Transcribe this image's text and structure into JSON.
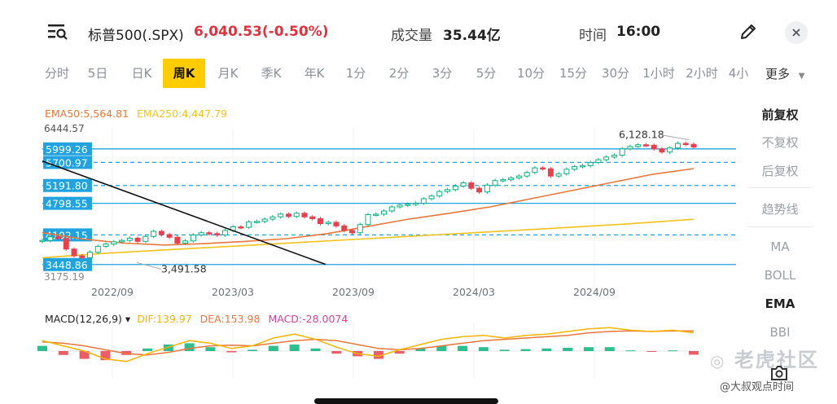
{
  "header": {
    "ticker": "标普500(.SPX)",
    "price_change": "6,040.53(-0.50%)",
    "volume_label": "成交量",
    "volume_value": "35.44亿",
    "time_label": "时间",
    "time_value": "16:00",
    "menu_icon": "search-list-icon",
    "edit_icon": "pencil-icon",
    "close_icon": "close-icon"
  },
  "timeframes": [
    "分时",
    "5日",
    "日K",
    "周K",
    "月K",
    "季K",
    "年K",
    "1分",
    "2分",
    "3分",
    "5分",
    "10分",
    "15分",
    "30分",
    "1小时",
    "2小时",
    "4小"
  ],
  "active_timeframe": "周K",
  "more_label": "更多",
  "side_panel": {
    "adjust": [
      "前复权",
      "不复权",
      "后复权"
    ],
    "active_adjust": "前复权",
    "tool": "趋势线",
    "indicators": [
      "MA",
      "BOLL",
      "EMA",
      "BBI"
    ],
    "active_indicator": "EMA"
  },
  "ema_legend": {
    "ema50": "EMA50:5,564.81",
    "ema250": "EMA250:4,447.79"
  },
  "macd_legend": {
    "name": "MACD(12,26,9)",
    "arrow": "▾",
    "dif": "DIF:139.97",
    "dea": "DEA:153.98",
    "macd": "MACD:-28.0074"
  },
  "watermark": "老虎社区",
  "credit": "@大叔观点时间",
  "colors": {
    "up": "#0ab37a",
    "down": "#e8414e",
    "ema50": "#e9763a",
    "ema250": "#f2c21b",
    "level": "#21a3e0",
    "dif": "#f5b400",
    "dea": "#e9763a",
    "macd": "#d6409f",
    "active_tab": "#ffcc00"
  },
  "chart_data": {
    "type": "candlestick",
    "ylim": [
      3175.19,
      6444.57
    ],
    "y_axis_top": "6444.57",
    "y_axis_bottom": "3175.19",
    "x_ticks": [
      "2022/09",
      "2023/03",
      "2023/09",
      "2024/03",
      "2024/09"
    ],
    "level_labels": [
      "5999.26",
      "5700.97",
      "5191.80",
      "4798.55",
      "4102.15",
      "3448.86"
    ],
    "levels": [
      {
        "value": 5999.26,
        "style": "solid"
      },
      {
        "value": 5700.97,
        "style": "dashed"
      },
      {
        "value": 5191.8,
        "style": "dashed"
      },
      {
        "value": 4798.55,
        "style": "solid"
      },
      {
        "value": 4102.15,
        "style": "dashed"
      },
      {
        "value": 3448.86,
        "style": "solid"
      }
    ],
    "annotations": [
      {
        "text": "6,128.18",
        "value": 6128.18
      },
      {
        "text": "3,491.58",
        "value": 3491.58
      }
    ],
    "trendline": [
      [
        4500,
        3500
      ],
      [
        4760,
        3990
      ]
    ],
    "close_series": [
      3980,
      4060,
      4020,
      3790,
      3640,
      3600,
      3720,
      3850,
      3900,
      3950,
      3980,
      4030,
      3960,
      4070,
      4180,
      4110,
      4050,
      3920,
      3970,
      4100,
      4150,
      4130,
      4100,
      4200,
      4280,
      4270,
      4390,
      4400,
      4450,
      4500,
      4560,
      4510,
      4580,
      4500,
      4460,
      4350,
      4380,
      4300,
      4200,
      4150,
      4330,
      4550,
      4560,
      4630,
      4720,
      4760,
      4780,
      4800,
      4900,
      4960,
      5060,
      5100,
      5180,
      5250,
      5130,
      5050,
      5200,
      5300,
      5320,
      5360,
      5400,
      5480,
      5580,
      5560,
      5400,
      5450,
      5550,
      5610,
      5630,
      5700,
      5760,
      5820,
      5860,
      6000,
      6050,
      6090,
      6080,
      6000,
      5930,
      6020,
      6120,
      6100,
      6040
    ],
    "ema50_series": [
      4150,
      4010,
      3920,
      3880,
      3910,
      3960,
      4020,
      4130,
      4290,
      4450,
      4580,
      4720,
      4900,
      5080,
      5260,
      5440,
      5564.81
    ],
    "ema250_series": [
      3600,
      3700,
      3780,
      3860,
      3940,
      4020,
      4100,
      4180,
      4260,
      4347,
      4447.79
    ],
    "macd": {
      "dif": [
        80,
        40,
        0,
        -60,
        -80,
        -20,
        30,
        80,
        60,
        20,
        40,
        100,
        130,
        90,
        30,
        -20,
        -40,
        10,
        50,
        90,
        110,
        120,
        100,
        120,
        130,
        150,
        170,
        180,
        160,
        150,
        160,
        139.97
      ],
      "dea": [
        70,
        60,
        40,
        10,
        -20,
        -30,
        -10,
        20,
        40,
        45,
        40,
        60,
        80,
        90,
        80,
        50,
        20,
        10,
        20,
        40,
        60,
        80,
        90,
        100,
        110,
        120,
        140,
        150,
        155,
        150,
        155,
        153.98
      ],
      "hist": [
        40,
        -30,
        -60,
        -70,
        -30,
        20,
        50,
        60,
        30,
        -10,
        10,
        40,
        50,
        20,
        -20,
        -40,
        -60,
        -20,
        20,
        40,
        40,
        30,
        10,
        15,
        20,
        25,
        30,
        30,
        5,
        -5,
        5,
        -28.0074
      ]
    }
  }
}
